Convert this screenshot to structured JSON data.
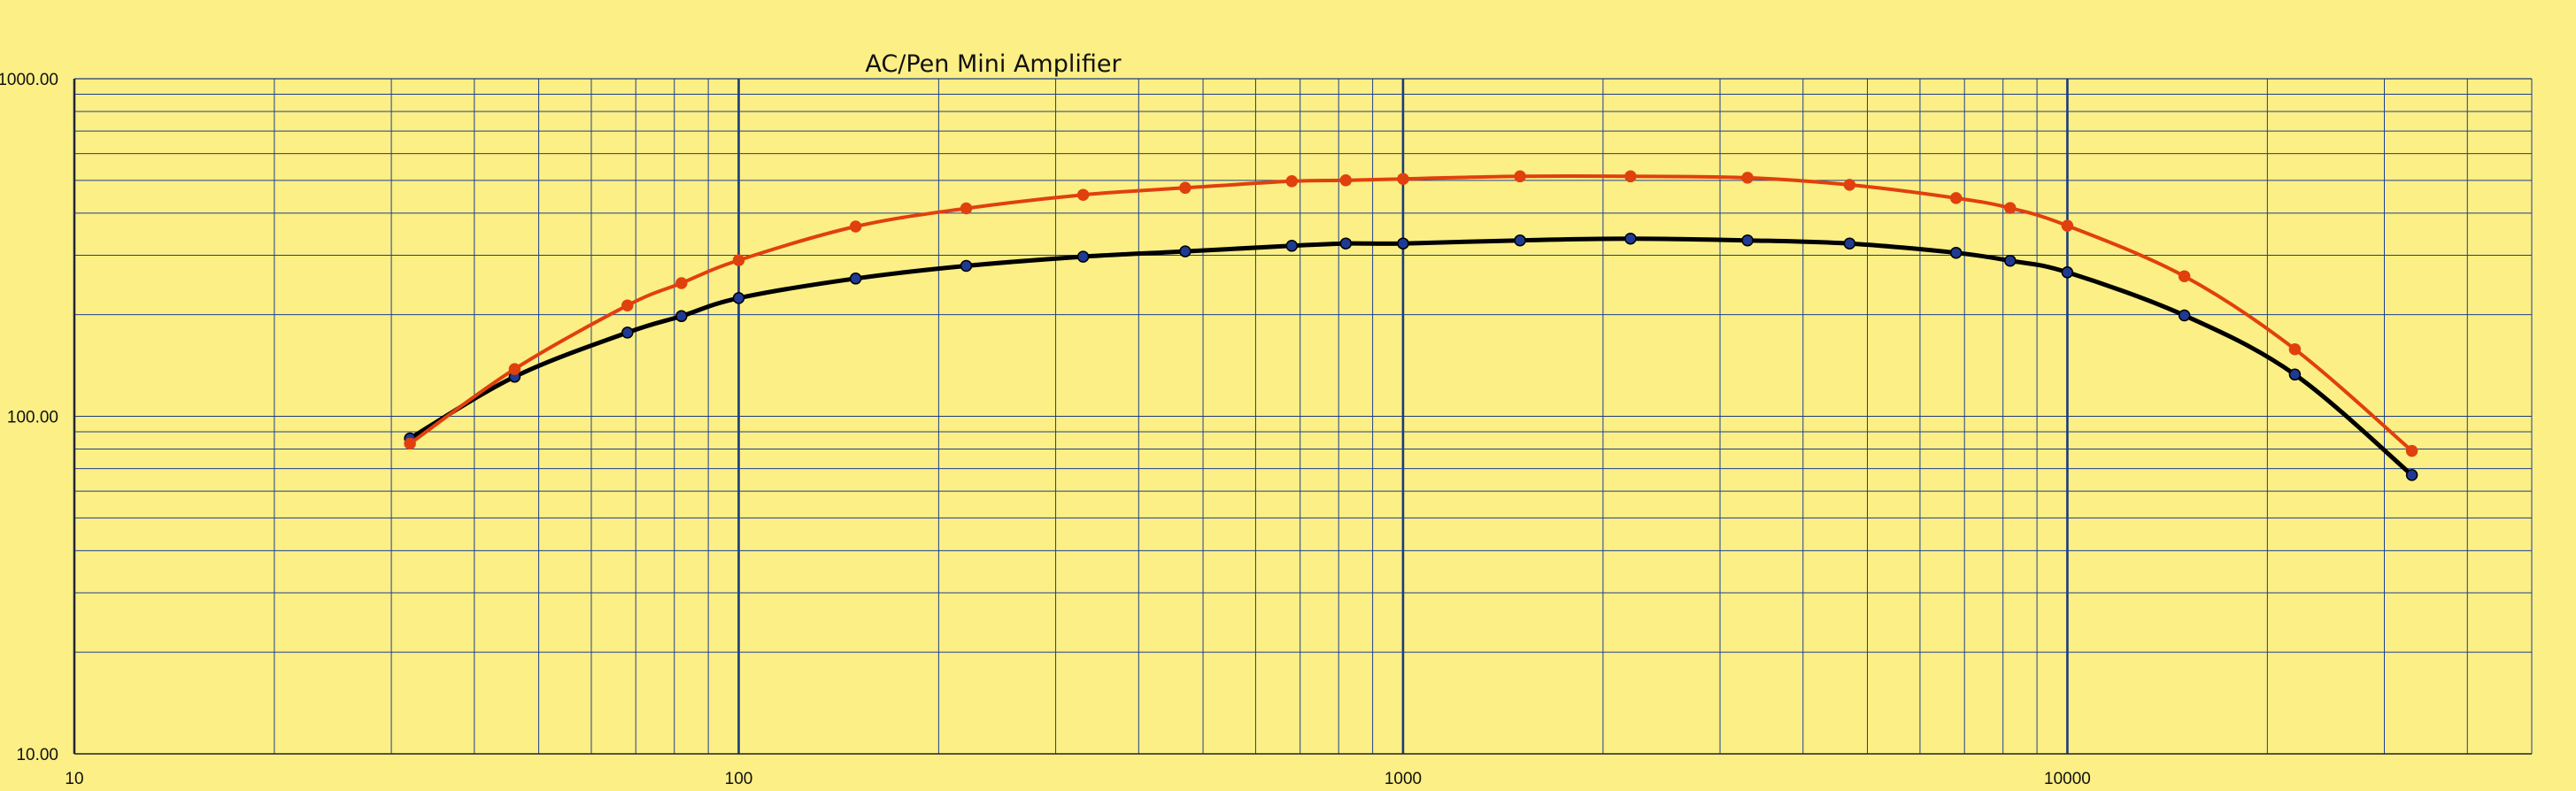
{
  "colors": {
    "background": "#fbef85",
    "grid_minor": "#1f3f8f",
    "grid_major": "#1a3a7a",
    "series_black": "#000000",
    "series_orange": "#e0400e",
    "marker_blue": "#1f3a93"
  },
  "chart_data": {
    "type": "line",
    "title": "AC/Pen Mini Amplifier",
    "xlabel": "",
    "ylabel": "",
    "x_scale": "log",
    "y_scale": "log",
    "xlim": [
      10,
      50000
    ],
    "ylim": [
      10,
      1000
    ],
    "grid": true,
    "x_tick_labels": [
      "10",
      "100",
      "1000",
      "10000"
    ],
    "y_tick_labels": [
      "10.00",
      "100.00",
      "1000.00"
    ],
    "series": [
      {
        "color": "#000000",
        "marker_color": "#1f3a93",
        "x": [
          32,
          46,
          68,
          82,
          100,
          150,
          220,
          330,
          470,
          680,
          820,
          1000,
          1500,
          2200,
          3300,
          4700,
          6800,
          8200,
          10000,
          15000,
          22000,
          33000
        ],
        "y": [
          86,
          131,
          177,
          198,
          224,
          256,
          279,
          297,
          308,
          320,
          325,
          325,
          332,
          336,
          332,
          325,
          305,
          289,
          267,
          199,
          133,
          67
        ]
      },
      {
        "color": "#e0400e",
        "marker_color": "#e0400e",
        "x": [
          32,
          46,
          68,
          82,
          100,
          150,
          220,
          330,
          470,
          680,
          820,
          1000,
          1500,
          2200,
          3300,
          4700,
          6800,
          8200,
          10000,
          15000,
          22000,
          33000
        ],
        "y": [
          83,
          138,
          213,
          248,
          290,
          365,
          413,
          453,
          475,
          497,
          500,
          505,
          514,
          514,
          509,
          485,
          443,
          414,
          367,
          260,
          158,
          79
        ]
      }
    ]
  }
}
